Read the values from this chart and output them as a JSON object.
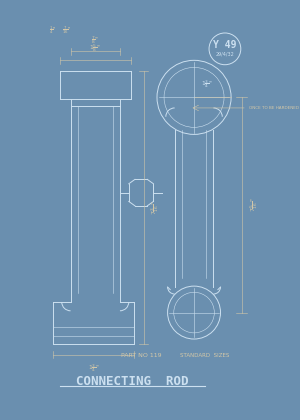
{
  "bg_color": "#6a8faf",
  "line_color": "#cce0f0",
  "dim_color": "#d4c8a8",
  "title": "CONNECTING  ROD",
  "part_label": "PART NO 119",
  "standards_label": "STANDARD  SIZES",
  "badge_text": "Y 49",
  "badge_date": "29/4/32",
  "lw": 0.7,
  "dim_lw": 0.4
}
